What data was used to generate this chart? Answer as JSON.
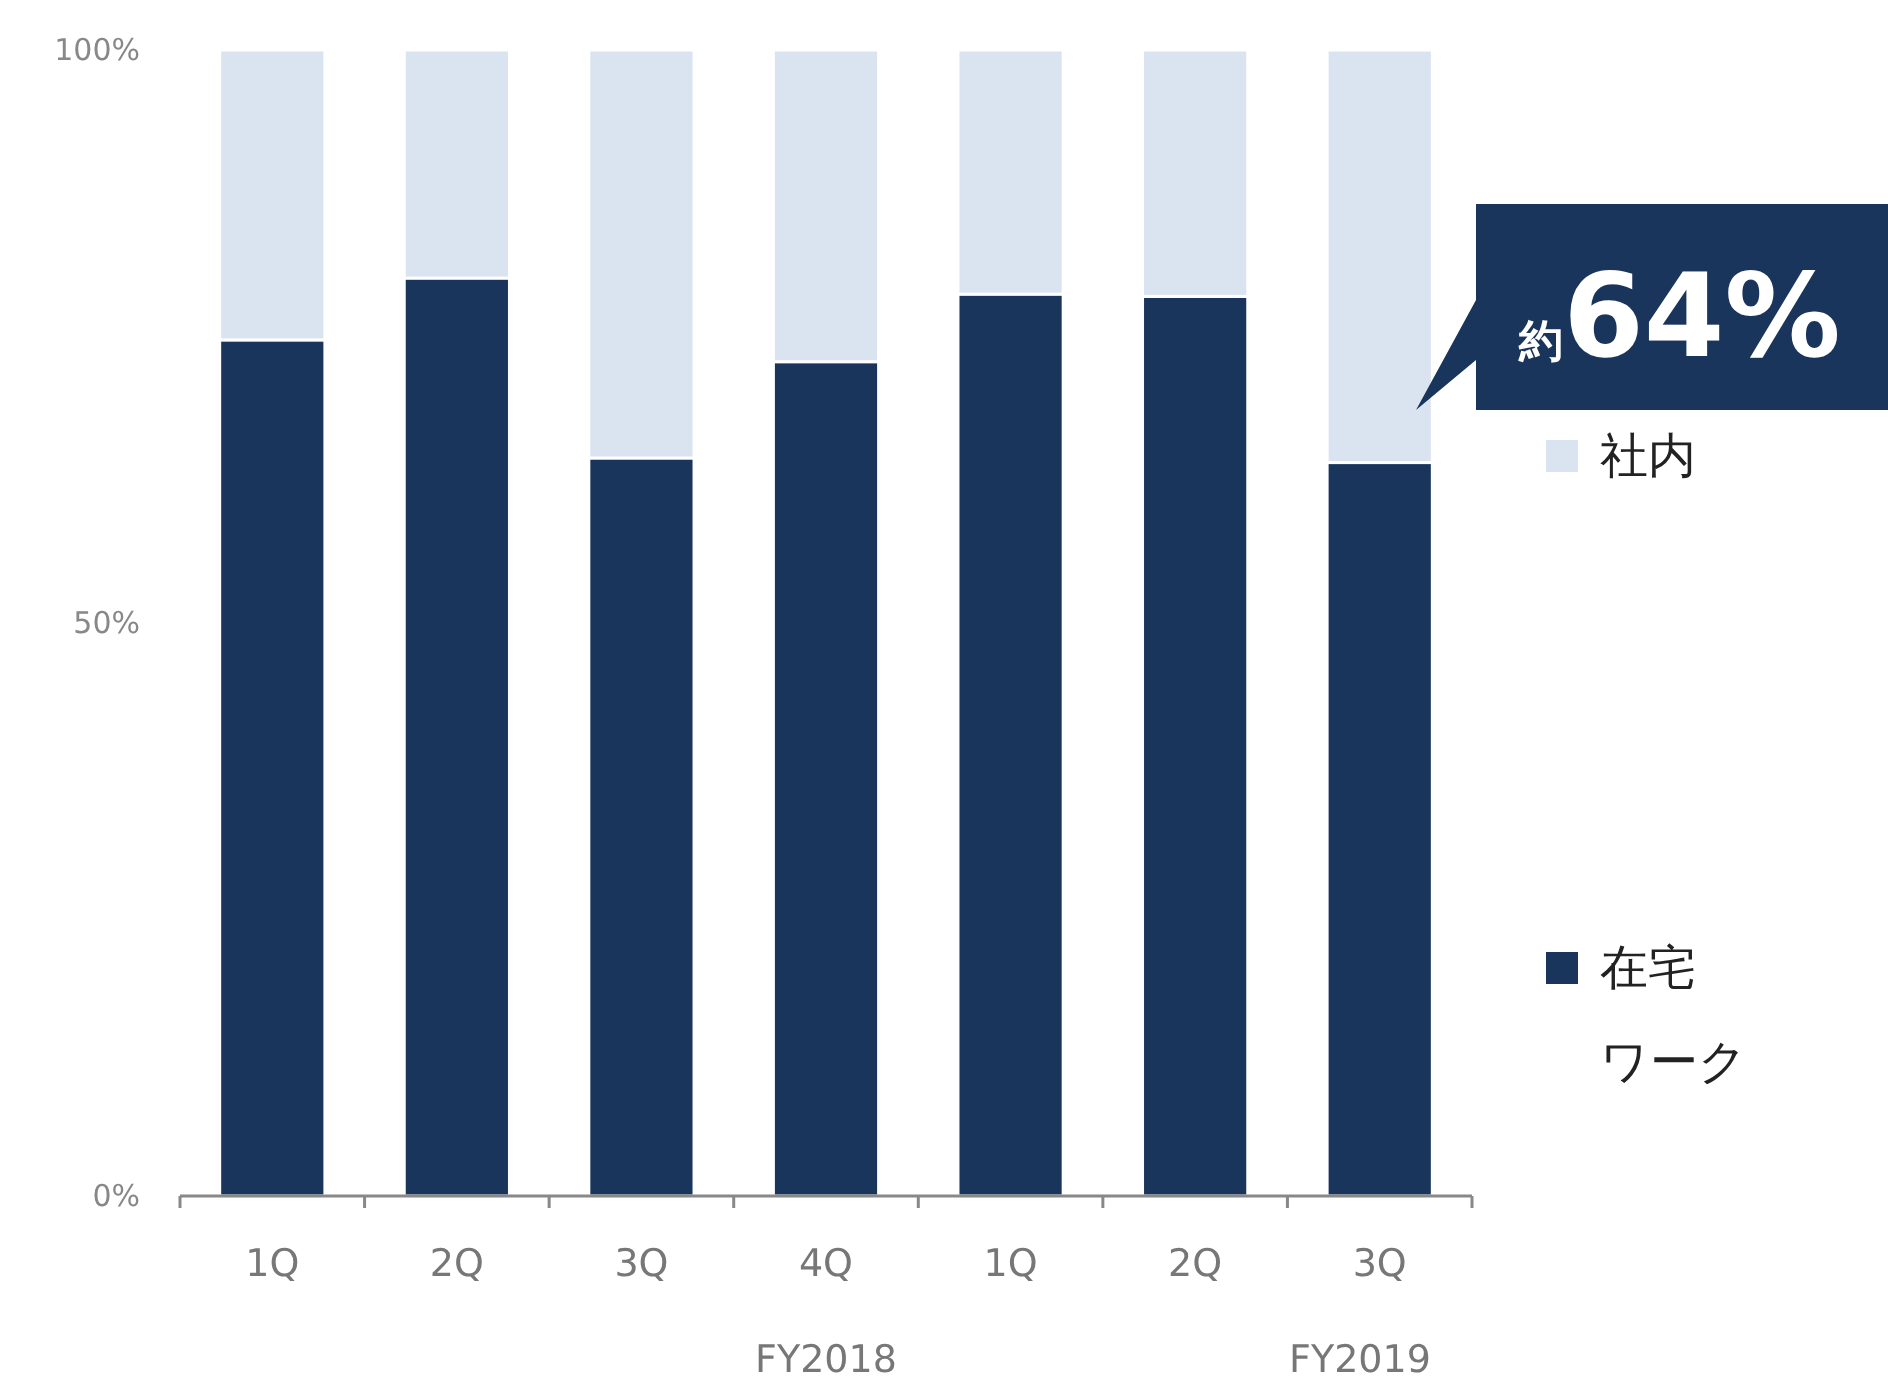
{
  "chart_data": {
    "type": "bar",
    "stacked": true,
    "categories": [
      "1Q",
      "2Q",
      "3Q",
      "4Q",
      "1Q",
      "2Q",
      "3Q"
    ],
    "series": [
      {
        "name": "在宅ワーク",
        "color": "#1a355b",
        "values": [
          74.7,
          80.1,
          64.4,
          72.8,
          78.7,
          78.5,
          64
        ]
      },
      {
        "name": "社内",
        "color": "#dae3f0",
        "values": [
          25.3,
          19.9,
          35.6,
          27.2,
          21.3,
          21.5,
          36
        ]
      }
    ],
    "ylim": [
      0,
      100
    ],
    "yticks": [
      {
        "value": 0,
        "label": "0%"
      },
      {
        "value": 50,
        "label": "50%"
      },
      {
        "value": 100,
        "label": "100%"
      }
    ],
    "legend": "right",
    "grid": false,
    "annotations": [
      "約64%",
      "FY2018",
      "FY2019"
    ]
  }
}
